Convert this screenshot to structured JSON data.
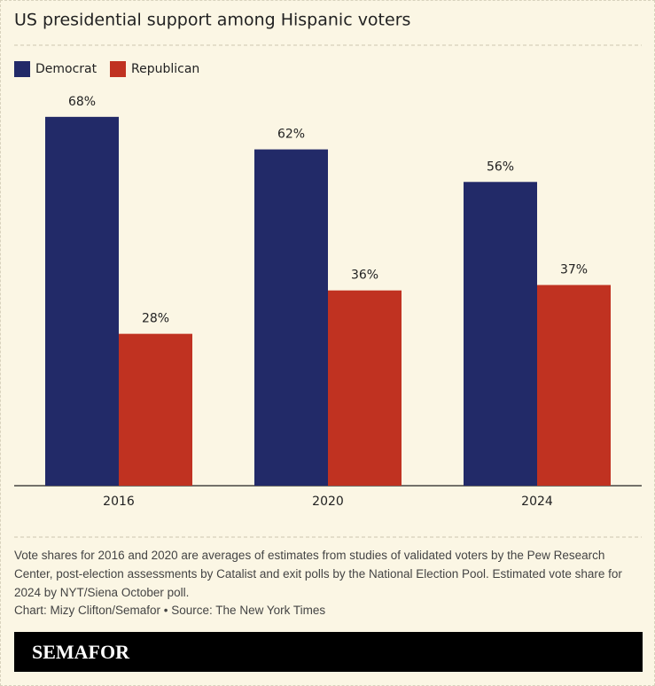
{
  "chart_data": {
    "type": "bar",
    "title": "US presidential support among Hispanic voters",
    "categories": [
      "2016",
      "2020",
      "2024"
    ],
    "series": [
      {
        "name": "Democrat",
        "color": "#222a68",
        "values": [
          68,
          62,
          56
        ],
        "value_labels": [
          "68%",
          "62%",
          "56%"
        ]
      },
      {
        "name": "Republican",
        "color": "#c03221",
        "values": [
          28,
          36,
          37
        ],
        "value_labels": [
          "28%",
          "36%",
          "37%"
        ]
      }
    ],
    "notes": "Vote shares for 2016 and 2020 are averages of estimates from studies of validated voters by the Pew Research Center, post-election assessments by Catalist and exit polls by the National Election Pool. Estimated vote share for 2024 by NYT/Siena October poll.",
    "credit": "Chart: Mizy Clifton/Semafor • Source: The New York Times",
    "brand": "SEMAFOR"
  }
}
